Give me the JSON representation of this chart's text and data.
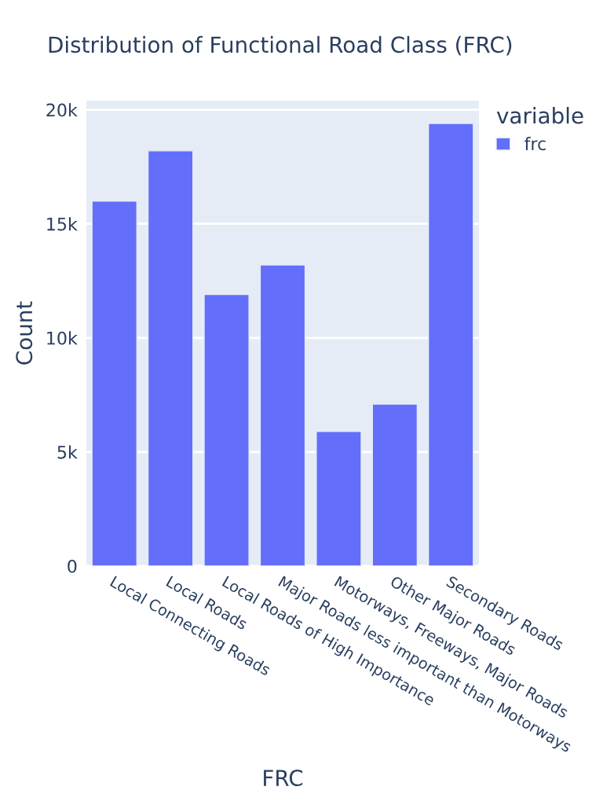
{
  "chart_data": {
    "type": "bar",
    "title": "Distribution of Functional Road Class (FRC)",
    "xlabel": "FRC",
    "ylabel": "Count",
    "legend_title": "variable",
    "categories": [
      "Local Connecting Roads",
      "Local Roads",
      "Local Roads of High Importance",
      "Major Roads less important than Motorways",
      "Motorways, Freeways, Major Roads",
      "Other Major Roads",
      "Secondary Roads"
    ],
    "series": [
      {
        "name": "frc",
        "color": "#636efa",
        "values": [
          16000,
          18200,
          11900,
          13200,
          5900,
          7100,
          19400
        ]
      }
    ],
    "ylim": [
      0,
      20400
    ],
    "yticks": [
      0,
      {
        "value": 5000,
        "label": "5k"
      },
      {
        "value": 10000,
        "label": "10k"
      },
      {
        "value": 15000,
        "label": "15k"
      },
      {
        "value": 20000,
        "label": "20k"
      }
    ],
    "grid": "y",
    "legend": "top right"
  }
}
